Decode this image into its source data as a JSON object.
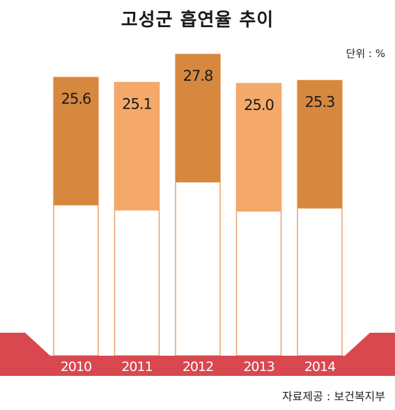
{
  "title": "고성군 흡연율 추이",
  "unit": "단위 : %",
  "source": "자료제공 : 보건복지부",
  "colors": {
    "dark_orange": "#d6883f",
    "light_orange": "#f4a96b",
    "bar_outline": "#f0a066",
    "base_band": "#d9474f",
    "label_dark": "#1a1a1a",
    "label_light": "#ffffff"
  },
  "chart_data": {
    "type": "bar",
    "categories": [
      "2010",
      "2011",
      "2012",
      "2013",
      "2014"
    ],
    "values": [
      25.6,
      25.1,
      27.8,
      25.0,
      25.3
    ],
    "data_labels": [
      "25.6",
      "25.1",
      "27.8",
      "25.0",
      "25.3"
    ],
    "bar_colors": [
      "#d6883f",
      "#f4a96b",
      "#d6883f",
      "#f4a96b",
      "#d6883f"
    ],
    "title": "고성군 흡연율 추이",
    "unit": "%",
    "grid": false,
    "legend": "none"
  }
}
